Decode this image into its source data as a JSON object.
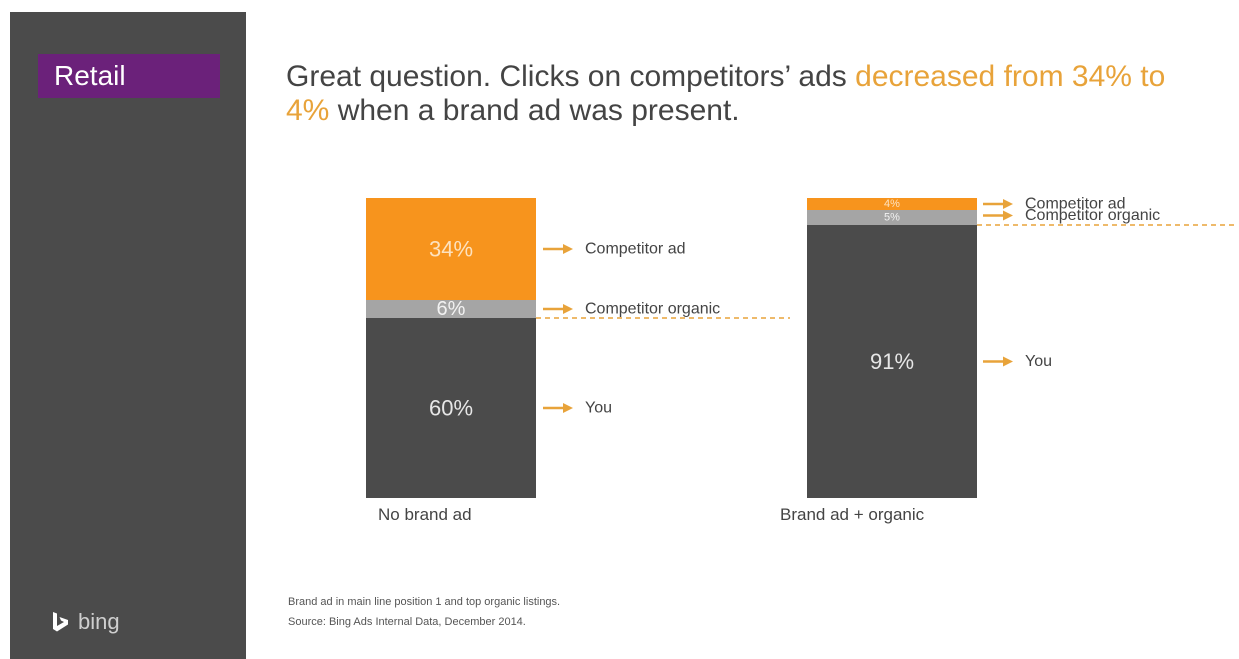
{
  "sidebar": {
    "section_label": "Retail",
    "brand_name": "bing",
    "logo_icon": "bing-logo-icon"
  },
  "headline": {
    "part1": "Great question. Clicks on competitors’ ads ",
    "highlight": "decreased from 34% to 4%",
    "part2": " when a brand ad was present."
  },
  "footnote": {
    "line1": "Brand ad in main line position 1 and top organic listings.",
    "line2": "Source: Bing Ads Internal Data, December 2014."
  },
  "colors": {
    "competitor_ad": "#f7941d",
    "competitor_organic": "#a5a5a5",
    "you": "#4b4b4b",
    "arrow": "#e8a33a",
    "sidebar": "#4b4b4b",
    "section_tag": "#6b217a"
  },
  "chart_data": {
    "type": "bar",
    "stacked": true,
    "categories": [
      "No brand ad",
      "Brand ad + organic"
    ],
    "series": [
      {
        "name": "Competitor ad",
        "values": [
          34,
          4
        ],
        "labels": [
          "34%",
          "4%"
        ]
      },
      {
        "name": "Competitor organic",
        "values": [
          6,
          5
        ],
        "labels": [
          "6%",
          "5%"
        ]
      },
      {
        "name": "You",
        "values": [
          60,
          91
        ],
        "labels": [
          "60%",
          "91%"
        ]
      }
    ],
    "ylim": [
      0,
      100
    ],
    "grid": false,
    "legend": "inline arrows to the right of each bar"
  }
}
